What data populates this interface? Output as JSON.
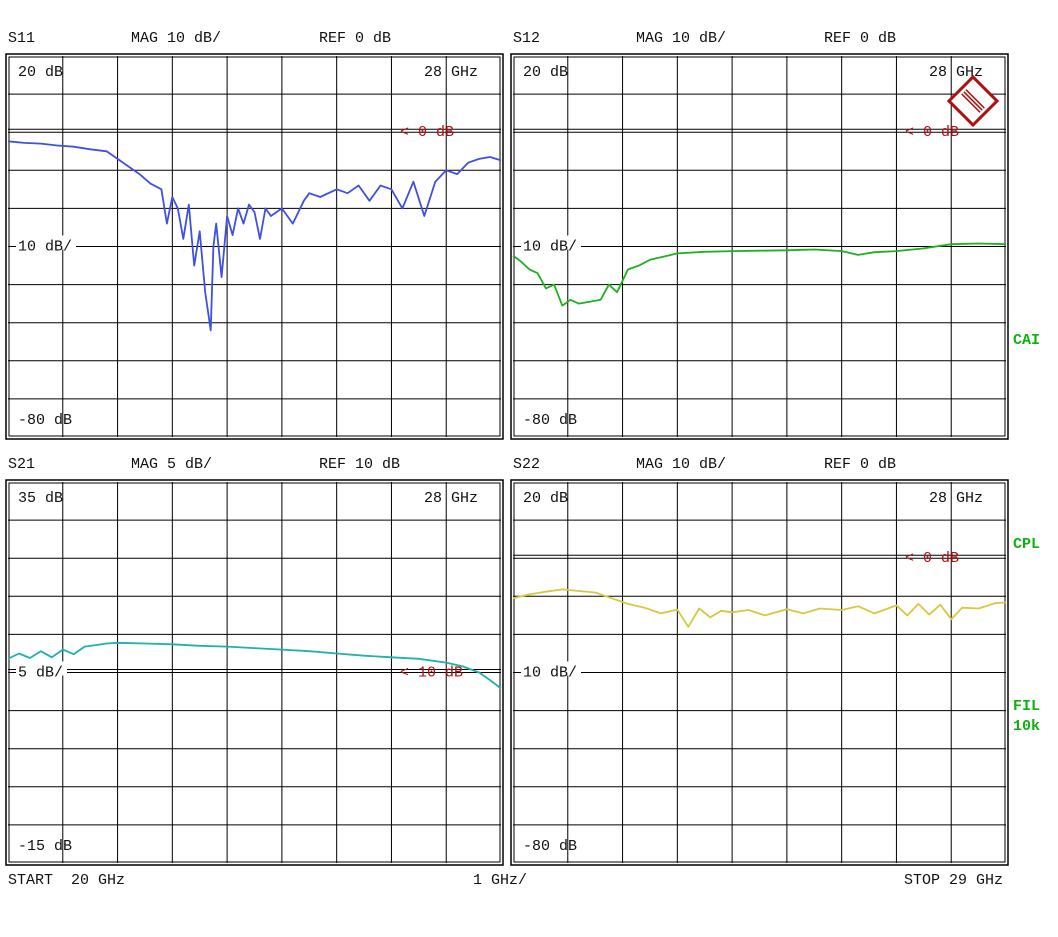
{
  "colors": {
    "grid": "#000000",
    "marker": "#b01010",
    "side_labels": "#10b010"
  },
  "footer": {
    "start": "START  20 GHz",
    "span": "1 GHz/",
    "stop": "STOP 29 GHz"
  },
  "side_labels": {
    "cai": "CAI",
    "cpl": "CPL",
    "fil": "FIL",
    "fil_bw": "10k"
  },
  "logo": {
    "text": "R&S",
    "icon": "rohde-schwarz-logo"
  },
  "chart_data": [
    {
      "type": "line",
      "title": "S11",
      "mag": "MAG 10 dB/",
      "ref": "REF 0 dB",
      "top_label": "20 dB",
      "bottom_label": "-80 dB",
      "scale_label": "10 dB/",
      "marker_freq": "28 GHz",
      "ref_marker": "< 0 dB",
      "ylim": [
        -80,
        20
      ],
      "xlim": [
        20,
        29
      ],
      "ref_value": 0,
      "color": "#4050e0",
      "x": [
        20,
        20.3,
        20.6,
        20.9,
        21.2,
        21.5,
        21.8,
        22.0,
        22.2,
        22.4,
        22.6,
        22.8,
        22.9,
        23.0,
        23.1,
        23.2,
        23.3,
        23.4,
        23.5,
        23.6,
        23.7,
        23.75,
        23.8,
        23.9,
        24.0,
        24.1,
        24.2,
        24.3,
        24.4,
        24.5,
        24.6,
        24.7,
        24.8,
        25.0,
        25.2,
        25.4,
        25.5,
        25.7,
        26.0,
        26.2,
        26.4,
        26.6,
        26.8,
        27.0,
        27.2,
        27.4,
        27.6,
        27.8,
        28.0,
        28.2,
        28.4,
        28.6,
        28.8,
        29.0
      ],
      "y": [
        -2.4,
        -2.8,
        -3.0,
        -3.5,
        -3.8,
        -4.5,
        -5.0,
        -7.0,
        -9.0,
        -11.0,
        -13.5,
        -15,
        -24,
        -17,
        -20,
        -28,
        -19,
        -35,
        -26,
        -42,
        -52,
        -30,
        -24,
        -38,
        -22,
        -27,
        -20,
        -24,
        -19,
        -21,
        -28,
        -20,
        -22,
        -20,
        -24,
        -18,
        -16,
        -17,
        -15,
        -16,
        -14,
        -18,
        -14,
        -15,
        -20,
        -13,
        -22,
        -13,
        -10,
        -11,
        -8,
        -7,
        -6.5,
        -7.4
      ]
    },
    {
      "type": "line",
      "title": "S12",
      "mag": "MAG 10 dB/",
      "ref": "REF 0 dB",
      "top_label": "20 dB",
      "bottom_label": "-80 dB",
      "scale_label": "10 dB/",
      "marker_freq": "28 GHz",
      "ref_marker": "< 0 dB",
      "ylim": [
        -80,
        20
      ],
      "xlim": [
        20,
        29
      ],
      "ref_value": 0,
      "color": "#20b020",
      "x": [
        20,
        20.15,
        20.3,
        20.45,
        20.6,
        20.75,
        20.9,
        21.05,
        21.2,
        21.4,
        21.6,
        21.75,
        21.9,
        22.1,
        22.3,
        22.5,
        22.8,
        23.0,
        23.5,
        24.0,
        24.5,
        25.0,
        25.5,
        26.0,
        26.3,
        26.6,
        27.0,
        27.5,
        28.0,
        28.5,
        29.0
      ],
      "y": [
        -32.4,
        -34,
        -36,
        -37,
        -41,
        -40,
        -45.5,
        -44,
        -45,
        -44.5,
        -44,
        -40,
        -42,
        -36,
        -35,
        -33.5,
        -32.5,
        -31.8,
        -31.4,
        -31.2,
        -31.1,
        -31,
        -30.8,
        -31.2,
        -32.2,
        -31.5,
        -31.2,
        -30.5,
        -29.4,
        -29.2,
        -29.4
      ]
    },
    {
      "type": "line",
      "title": "S21",
      "mag": "MAG 5 dB/",
      "ref": "REF 10 dB",
      "top_label": "35 dB",
      "bottom_label": "-15 dB",
      "scale_label": "5 dB/",
      "marker_freq": "28 GHz",
      "ref_marker": "< 10 dB",
      "ylim": [
        -15,
        35
      ],
      "xlim": [
        20,
        29
      ],
      "ref_value": 10,
      "color": "#20b0b0",
      "x": [
        20,
        20.2,
        20.4,
        20.6,
        20.8,
        21.0,
        21.2,
        21.4,
        21.6,
        21.8,
        22.0,
        22.5,
        23.0,
        23.5,
        24.0,
        24.5,
        25.0,
        25.5,
        26.0,
        26.5,
        27.0,
        27.5,
        28.0,
        28.3,
        28.6,
        28.8,
        29.0
      ],
      "y": [
        11.8,
        12.5,
        11.9,
        12.8,
        12.0,
        13.0,
        12.4,
        13.4,
        13.6,
        13.8,
        13.9,
        13.8,
        13.7,
        13.5,
        13.4,
        13.2,
        13.0,
        12.8,
        12.5,
        12.2,
        12.0,
        11.8,
        11.3,
        10.8,
        10.0,
        9.0,
        7.9
      ]
    },
    {
      "type": "line",
      "title": "S22",
      "mag": "MAG 10 dB/",
      "ref": "REF 0 dB",
      "top_label": "20 dB",
      "bottom_label": "-80 dB",
      "scale_label": "10 dB/",
      "marker_freq": "28 GHz",
      "ref_marker": "< 0 dB",
      "ylim": [
        -80,
        20
      ],
      "xlim": [
        20,
        29
      ],
      "ref_value": 0,
      "color": "#d8c840",
      "x": [
        20,
        20.3,
        20.6,
        20.9,
        21.2,
        21.5,
        21.8,
        22.1,
        22.4,
        22.7,
        23.0,
        23.2,
        23.4,
        23.6,
        23.8,
        24.0,
        24.3,
        24.6,
        25.0,
        25.3,
        25.6,
        26.0,
        26.3,
        26.6,
        27.0,
        27.2,
        27.4,
        27.6,
        27.8,
        28.0,
        28.2,
        28.5,
        28.8,
        29.0
      ],
      "y": [
        -10.5,
        -9.5,
        -8.8,
        -8.2,
        -8.6,
        -9.0,
        -10.5,
        -12.0,
        -13.0,
        -14.5,
        -13.5,
        -18,
        -13.2,
        -15.5,
        -13.8,
        -14.2,
        -13.6,
        -15,
        -13.4,
        -14.5,
        -13.2,
        -13.6,
        -12.6,
        -14.5,
        -12.4,
        -15,
        -12.0,
        -14.8,
        -12.2,
        -16,
        -13.0,
        -13.2,
        -11.8,
        -11.6
      ]
    }
  ]
}
